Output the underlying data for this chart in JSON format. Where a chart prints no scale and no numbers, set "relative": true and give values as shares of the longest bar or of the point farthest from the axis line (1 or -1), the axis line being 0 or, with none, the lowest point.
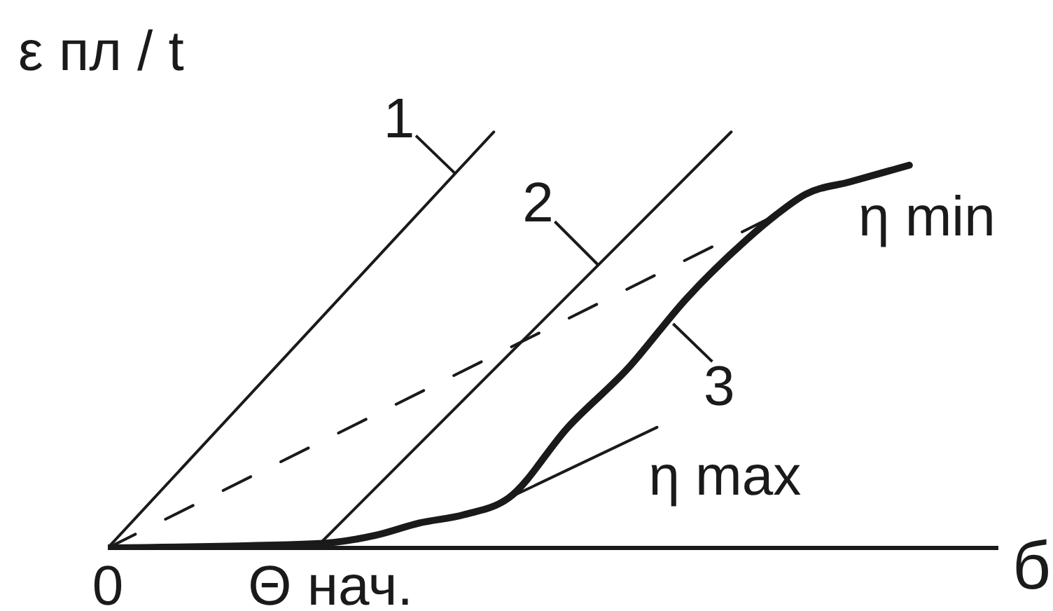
{
  "chart_data": {
    "type": "line",
    "relative": true,
    "ylabel": "ε пл / t",
    "xlabel": "б",
    "annotations": [
      "η min"
    ],
    "categories": [
      "0",
      null,
      null,
      null,
      null,
      null,
      null,
      null,
      null,
      null,
      null,
      null,
      null,
      null,
      null,
      "Θ нач.",
      null,
      null,
      null,
      null,
      null,
      null,
      null,
      null,
      null,
      null,
      null,
      null,
      null,
      null,
      null,
      null,
      null,
      null,
      null,
      null,
      null,
      null,
      null,
      null,
      null,
      null,
      null,
      null,
      null,
      null,
      null,
      null,
      null,
      null,
      null,
      null,
      null,
      null,
      null,
      null,
      null,
      null,
      null,
      null,
      null
    ],
    "series": [
      {
        "name": "1",
        "color": "#1a1a1a",
        "values": [
          0,
          null,
          null,
          null,
          null,
          null,
          null,
          null,
          null,
          null,
          null,
          null,
          null,
          null,
          null,
          null,
          null,
          null,
          null,
          null,
          null,
          null,
          null,
          null,
          null,
          null,
          1,
          null,
          null,
          null,
          null,
          null,
          null,
          null,
          null,
          null,
          null,
          null,
          null,
          null,
          null,
          null,
          null,
          null,
          null,
          null,
          null,
          null,
          null,
          null,
          null,
          null,
          null,
          null,
          null,
          null,
          null,
          null,
          null,
          null,
          null
        ]
      },
      {
        "name": "2",
        "color": "#1a1a1a",
        "values": [
          null,
          null,
          null,
          null,
          null,
          null,
          null,
          null,
          null,
          null,
          null,
          null,
          null,
          null,
          0,
          null,
          null,
          null,
          null,
          null,
          null,
          null,
          null,
          null,
          null,
          null,
          null,
          null,
          null,
          null,
          null,
          null,
          null,
          null,
          null,
          null,
          null,
          null,
          null,
          null,
          null,
          null,
          1,
          null,
          null,
          null,
          null,
          null,
          null,
          null,
          null,
          null,
          null,
          null,
          null,
          null,
          null,
          null,
          null,
          null,
          null
        ]
      },
      {
        "name": "3",
        "color": "#1a1a1a",
        "values": [
          0,
          null,
          null,
          null,
          null,
          null,
          null,
          null,
          null,
          null,
          null,
          null,
          null,
          null,
          0.01,
          null,
          null,
          null,
          0.03,
          null,
          null,
          0.06,
          null,
          null,
          0.08,
          null,
          null,
          0.12,
          null,
          null,
          null,
          0.29,
          null,
          null,
          null,
          0.43,
          null,
          null,
          null,
          0.6,
          null,
          null,
          null,
          0.74,
          null,
          0.8,
          null,
          0.85,
          null,
          null,
          0.88,
          null,
          null,
          null,
          0.92,
          null,
          null,
          null,
          null,
          null,
          null
        ]
      },
      {
        "color": "#1a1a1a",
        "line_style": "dashed",
        "values": [
          0,
          null,
          null,
          null,
          null,
          null,
          null,
          null,
          null,
          null,
          null,
          null,
          null,
          null,
          null,
          null,
          null,
          null,
          null,
          null,
          null,
          null,
          null,
          null,
          null,
          null,
          null,
          null,
          null,
          null,
          null,
          null,
          null,
          null,
          null,
          null,
          null,
          null,
          null,
          null,
          null,
          null,
          null,
          null,
          null,
          0.8,
          null,
          null,
          null,
          null,
          null,
          null,
          null,
          null,
          null,
          null,
          null,
          null,
          null,
          null,
          null
        ]
      },
      {
        "name": "η max",
        "color": "#1a1a1a",
        "values": [
          null,
          null,
          null,
          null,
          null,
          null,
          null,
          null,
          null,
          null,
          null,
          null,
          null,
          null,
          null,
          null,
          null,
          null,
          null,
          null,
          null,
          null,
          null,
          null,
          null,
          null,
          null,
          0.12,
          null,
          null,
          null,
          null,
          null,
          null,
          null,
          null,
          null,
          0.29,
          null,
          null,
          null,
          null,
          null,
          null,
          null,
          null,
          null,
          null,
          null,
          null,
          null,
          null,
          null,
          null,
          null,
          null,
          null,
          null,
          null,
          null,
          null
        ]
      }
    ]
  }
}
